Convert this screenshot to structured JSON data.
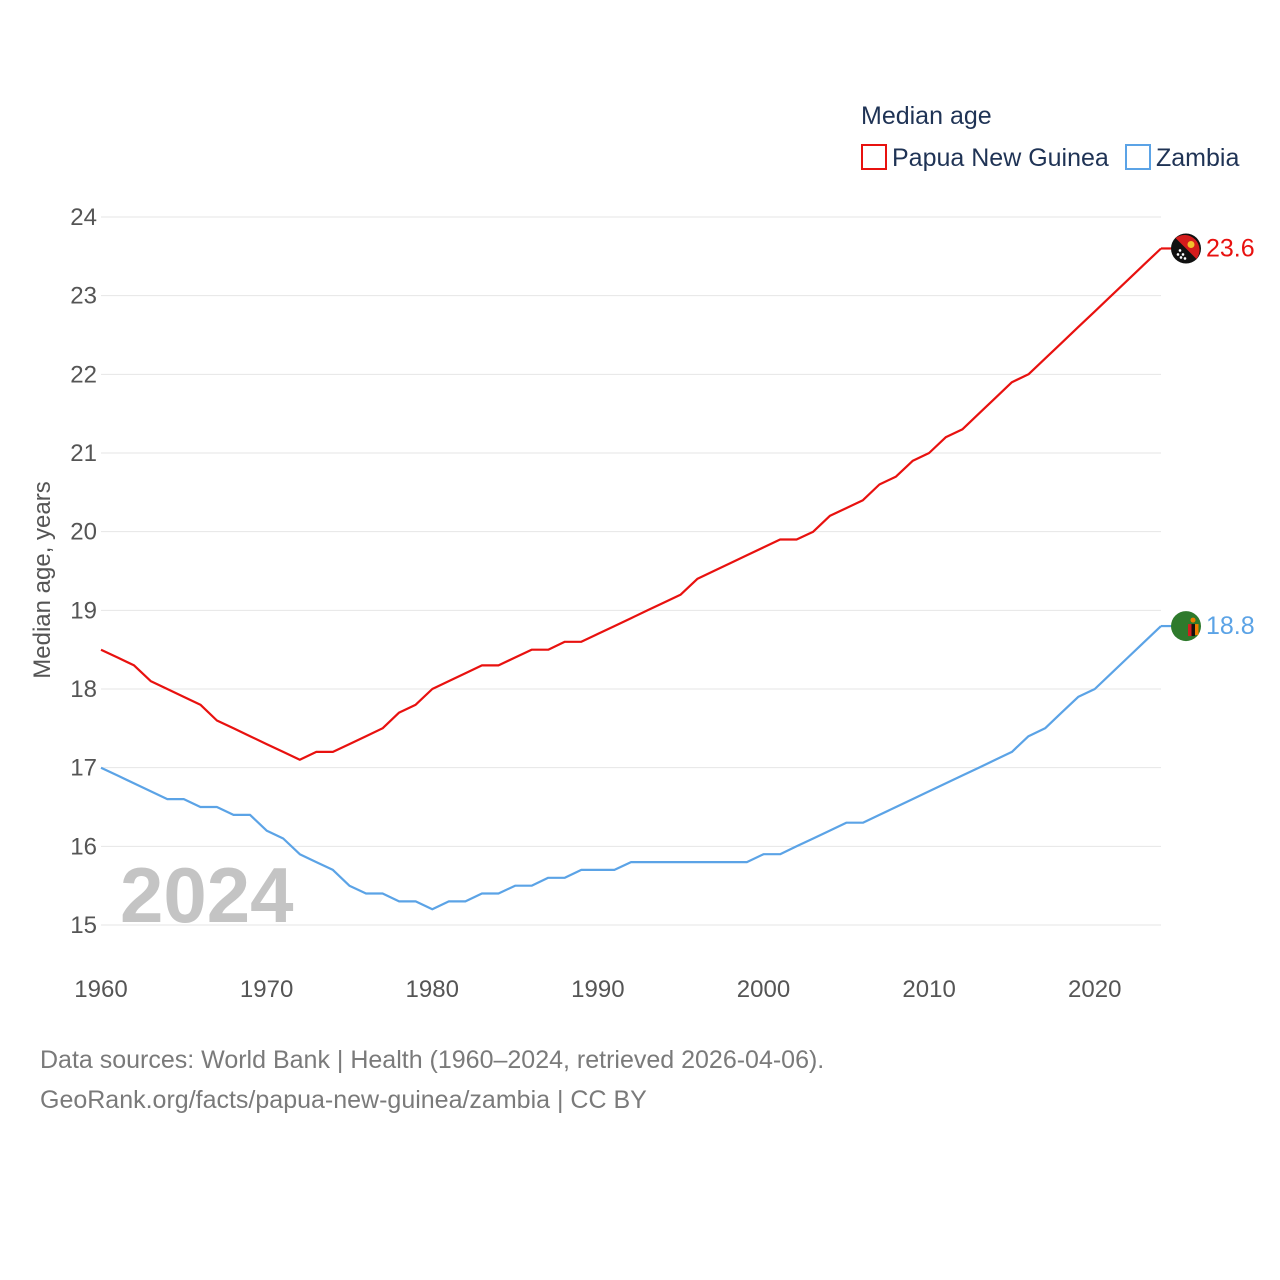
{
  "chart_data": {
    "type": "line",
    "title": "Median age",
    "xlabel": "",
    "ylabel": "Median age, years",
    "x_ticks": [
      "1960",
      "1970",
      "1980",
      "1990",
      "2000",
      "2010",
      "2020"
    ],
    "y_ticks": [
      "15",
      "16",
      "17",
      "18",
      "19",
      "20",
      "21",
      "22",
      "23",
      "24"
    ],
    "xlim": [
      1960,
      2024
    ],
    "ylim": [
      15,
      24
    ],
    "grid": true,
    "legend": "top-right",
    "year_watermark": "2024",
    "series": [
      {
        "name": "Papua New Guinea",
        "color": "#e8110f",
        "flag_icon": "papua-new-guinea-flag-icon",
        "end_label": "23.6",
        "points": [
          [
            1960,
            18.5
          ],
          [
            1961,
            18.4
          ],
          [
            1962,
            18.3
          ],
          [
            1963,
            18.1
          ],
          [
            1964,
            18.0
          ],
          [
            1965,
            17.9
          ],
          [
            1966,
            17.8
          ],
          [
            1967,
            17.6
          ],
          [
            1968,
            17.5
          ],
          [
            1969,
            17.4
          ],
          [
            1970,
            17.3
          ],
          [
            1971,
            17.2
          ],
          [
            1972,
            17.1
          ],
          [
            1973,
            17.2
          ],
          [
            1974,
            17.2
          ],
          [
            1975,
            17.3
          ],
          [
            1976,
            17.4
          ],
          [
            1977,
            17.5
          ],
          [
            1978,
            17.7
          ],
          [
            1979,
            17.8
          ],
          [
            1980,
            18.0
          ],
          [
            1981,
            18.1
          ],
          [
            1982,
            18.2
          ],
          [
            1983,
            18.3
          ],
          [
            1984,
            18.3
          ],
          [
            1985,
            18.4
          ],
          [
            1986,
            18.5
          ],
          [
            1987,
            18.5
          ],
          [
            1988,
            18.6
          ],
          [
            1989,
            18.6
          ],
          [
            1990,
            18.7
          ],
          [
            1991,
            18.8
          ],
          [
            1992,
            18.9
          ],
          [
            1993,
            19.0
          ],
          [
            1994,
            19.1
          ],
          [
            1995,
            19.2
          ],
          [
            1996,
            19.4
          ],
          [
            1997,
            19.5
          ],
          [
            1998,
            19.6
          ],
          [
            1999,
            19.7
          ],
          [
            2000,
            19.8
          ],
          [
            2001,
            19.9
          ],
          [
            2002,
            19.9
          ],
          [
            2003,
            20.0
          ],
          [
            2004,
            20.2
          ],
          [
            2005,
            20.3
          ],
          [
            2006,
            20.4
          ],
          [
            2007,
            20.6
          ],
          [
            2008,
            20.7
          ],
          [
            2009,
            20.9
          ],
          [
            2010,
            21.0
          ],
          [
            2011,
            21.2
          ],
          [
            2012,
            21.3
          ],
          [
            2013,
            21.5
          ],
          [
            2014,
            21.7
          ],
          [
            2015,
            21.9
          ],
          [
            2016,
            22.0
          ],
          [
            2017,
            22.2
          ],
          [
            2018,
            22.4
          ],
          [
            2019,
            22.6
          ],
          [
            2020,
            22.8
          ],
          [
            2021,
            23.0
          ],
          [
            2022,
            23.2
          ],
          [
            2023,
            23.4
          ],
          [
            2024,
            23.6
          ]
        ]
      },
      {
        "name": "Zambia",
        "color": "#5ba3e6",
        "flag_icon": "zambia-flag-icon",
        "end_label": "18.8",
        "points": [
          [
            1960,
            17.0
          ],
          [
            1961,
            16.9
          ],
          [
            1962,
            16.8
          ],
          [
            1963,
            16.7
          ],
          [
            1964,
            16.6
          ],
          [
            1965,
            16.6
          ],
          [
            1966,
            16.5
          ],
          [
            1967,
            16.5
          ],
          [
            1968,
            16.4
          ],
          [
            1969,
            16.4
          ],
          [
            1970,
            16.2
          ],
          [
            1971,
            16.1
          ],
          [
            1972,
            15.9
          ],
          [
            1973,
            15.8
          ],
          [
            1974,
            15.7
          ],
          [
            1975,
            15.5
          ],
          [
            1976,
            15.4
          ],
          [
            1977,
            15.4
          ],
          [
            1978,
            15.3
          ],
          [
            1979,
            15.3
          ],
          [
            1980,
            15.2
          ],
          [
            1981,
            15.3
          ],
          [
            1982,
            15.3
          ],
          [
            1983,
            15.4
          ],
          [
            1984,
            15.4
          ],
          [
            1985,
            15.5
          ],
          [
            1986,
            15.5
          ],
          [
            1987,
            15.6
          ],
          [
            1988,
            15.6
          ],
          [
            1989,
            15.7
          ],
          [
            1990,
            15.7
          ],
          [
            1991,
            15.7
          ],
          [
            1992,
            15.8
          ],
          [
            1993,
            15.8
          ],
          [
            1994,
            15.8
          ],
          [
            1995,
            15.8
          ],
          [
            1996,
            15.8
          ],
          [
            1997,
            15.8
          ],
          [
            1998,
            15.8
          ],
          [
            1999,
            15.8
          ],
          [
            2000,
            15.9
          ],
          [
            2001,
            15.9
          ],
          [
            2002,
            16.0
          ],
          [
            2003,
            16.1
          ],
          [
            2004,
            16.2
          ],
          [
            2005,
            16.3
          ],
          [
            2006,
            16.3
          ],
          [
            2007,
            16.4
          ],
          [
            2008,
            16.5
          ],
          [
            2009,
            16.6
          ],
          [
            2010,
            16.7
          ],
          [
            2011,
            16.8
          ],
          [
            2012,
            16.9
          ],
          [
            2013,
            17.0
          ],
          [
            2014,
            17.1
          ],
          [
            2015,
            17.2
          ],
          [
            2016,
            17.4
          ],
          [
            2017,
            17.5
          ],
          [
            2018,
            17.7
          ],
          [
            2019,
            17.9
          ],
          [
            2020,
            18.0
          ],
          [
            2021,
            18.2
          ],
          [
            2022,
            18.4
          ],
          [
            2023,
            18.6
          ],
          [
            2024,
            18.8
          ]
        ]
      }
    ]
  },
  "footer": {
    "sources": "Data sources: World Bank | Health (1960–2024, retrieved 2026-04-06).",
    "credit": "GeoRank.org/facts/papua-new-guinea/zambia | CC BY"
  }
}
